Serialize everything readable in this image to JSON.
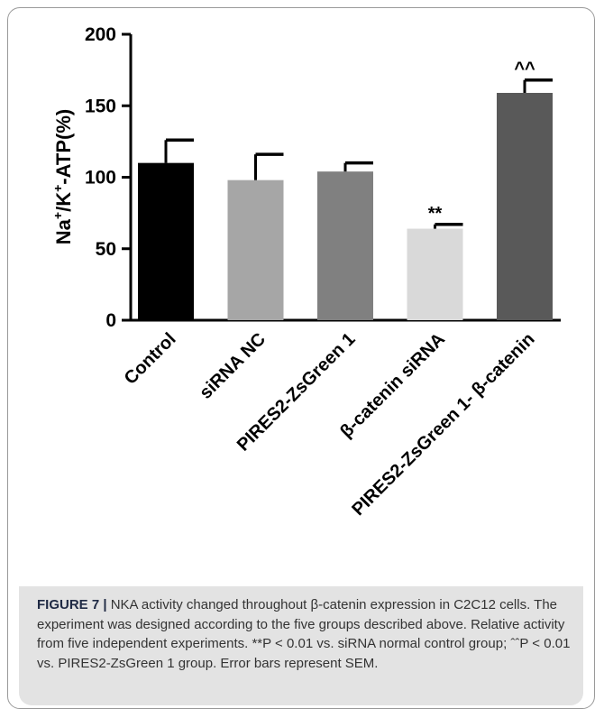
{
  "chart_data": {
    "type": "bar",
    "categories": [
      "Control",
      "siRNA NC",
      "PIRES2-ZsGreen 1",
      "β-catenin siRNA",
      "PIRES2-ZsGreen 1- β-catenin"
    ],
    "values": [
      110,
      98,
      104,
      64,
      159
    ],
    "errors": [
      16,
      18,
      6,
      3,
      9
    ],
    "colors": [
      "#000000",
      "#a6a6a6",
      "#808080",
      "#d9d9d9",
      "#595959"
    ],
    "annotations": [
      "",
      "",
      "",
      "**",
      "^^"
    ],
    "ylabel_parts": [
      "Na",
      "+",
      "/K",
      "+",
      "-ATP(%)"
    ],
    "yticks": [
      0,
      50,
      100,
      150,
      200
    ],
    "ylim": [
      0,
      200
    ],
    "grid": false
  },
  "caption": {
    "label": "FIGURE 7 |",
    "text": " NKA activity changed throughout β-catenin expression in C2C12 cells. The experiment was designed according to the five groups described above. Relative activity from five independent experiments. **P < 0.01 vs. siRNA normal control group; ˆˆP < 0.01 vs. PIRES2-ZsGreen 1 group. Error bars represent SEM."
  }
}
